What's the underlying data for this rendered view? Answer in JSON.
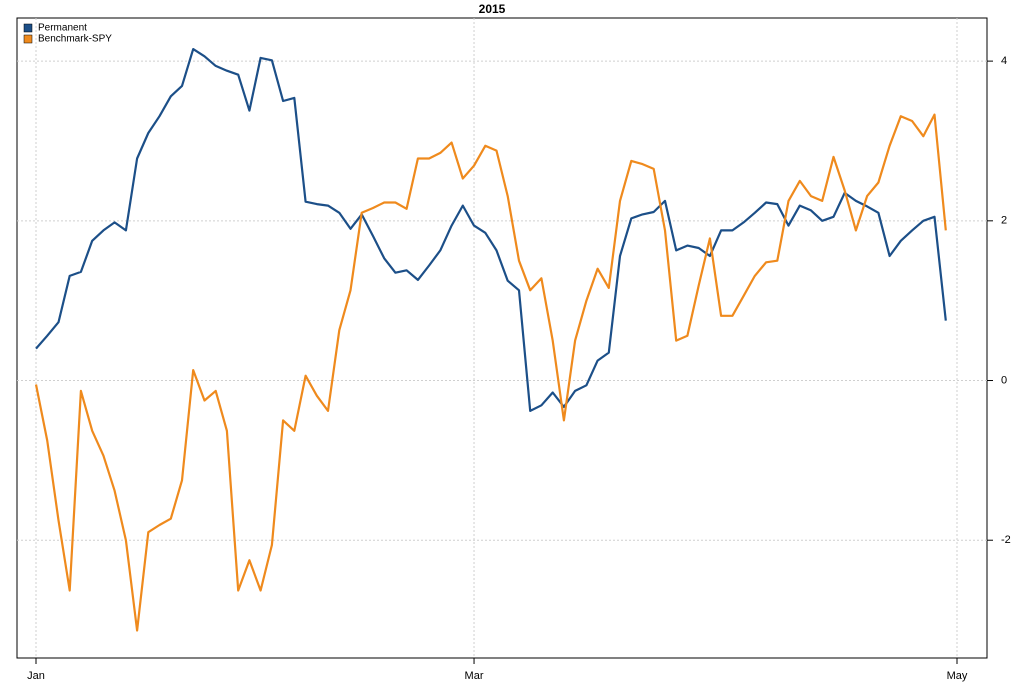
{
  "chart_data": {
    "type": "line",
    "title": "2015",
    "categories": [
      "Jan",
      null,
      null,
      null,
      null,
      null,
      null,
      null,
      null,
      null,
      null,
      null,
      null,
      null,
      null,
      null,
      null,
      null,
      null,
      null,
      null,
      null,
      null,
      null,
      null,
      null,
      null,
      null,
      null,
      null,
      null,
      null,
      null,
      null,
      null,
      null,
      null,
      null,
      null,
      "Mar",
      null,
      null,
      null,
      null,
      null,
      null,
      null,
      null,
      null,
      null,
      null,
      null,
      null,
      null,
      null,
      null,
      null,
      null,
      null,
      null,
      null,
      null,
      null,
      null,
      null,
      null,
      null,
      null,
      null,
      null,
      null,
      null,
      null,
      null,
      null,
      null,
      null,
      null,
      null,
      null,
      null,
      null,
      "May"
    ],
    "series": [
      {
        "name": "Permanent",
        "color": "#1c4f88",
        "values": [
          0.4,
          0.56,
          0.73,
          1.31,
          1.36,
          1.75,
          1.88,
          1.98,
          1.88,
          2.78,
          3.1,
          3.31,
          3.56,
          3.69,
          4.15,
          4.06,
          3.94,
          3.88,
          3.83,
          3.38,
          4.04,
          4.01,
          3.5,
          3.54,
          2.24,
          2.21,
          2.19,
          2.1,
          1.9,
          2.08,
          1.81,
          1.53,
          1.35,
          1.38,
          1.26,
          1.44,
          1.63,
          1.94,
          2.19,
          1.94,
          1.85,
          1.63,
          1.25,
          1.13,
          -0.38,
          -0.31,
          -0.15,
          -0.33,
          -0.13,
          -0.06,
          0.25,
          0.35,
          1.56,
          2.03,
          2.08,
          2.11,
          2.25,
          1.63,
          1.69,
          1.66,
          1.56,
          1.88,
          1.88,
          1.98,
          2.1,
          2.23,
          2.21,
          1.94,
          2.19,
          2.13,
          2.0,
          2.05,
          2.35,
          2.25,
          2.18,
          2.1,
          1.56,
          1.75,
          1.88,
          2.0,
          2.05,
          0.75,
          null
        ]
      },
      {
        "name": "Benchmark-SPY",
        "color": "#ef8a1d",
        "values": [
          -0.05,
          -0.75,
          -1.75,
          -2.63,
          -0.13,
          -0.63,
          -0.94,
          -1.38,
          -2.0,
          -3.13,
          -1.9,
          -1.81,
          -1.73,
          -1.25,
          0.13,
          -0.25,
          -0.13,
          -0.63,
          -2.63,
          -2.25,
          -2.63,
          -2.06,
          -0.5,
          -0.63,
          0.06,
          -0.19,
          -0.38,
          0.63,
          1.13,
          2.1,
          2.16,
          2.23,
          2.23,
          2.15,
          2.78,
          2.78,
          2.85,
          2.98,
          2.53,
          2.69,
          2.94,
          2.88,
          2.31,
          1.5,
          1.13,
          1.28,
          0.5,
          -0.5,
          0.5,
          1.0,
          1.4,
          1.16,
          2.25,
          2.75,
          2.71,
          2.65,
          1.88,
          0.5,
          0.56,
          1.19,
          1.78,
          0.81,
          0.81,
          1.06,
          1.31,
          1.48,
          1.5,
          2.25,
          2.5,
          2.31,
          2.25,
          2.8,
          2.38,
          1.88,
          2.31,
          2.48,
          2.94,
          3.31,
          3.25,
          3.06,
          3.33,
          1.88,
          null
        ]
      }
    ],
    "ylim": [
      -3.475,
      4.54
    ],
    "yticks": [
      -2,
      0,
      2,
      4
    ],
    "grid": true,
    "legend": "topleft"
  }
}
